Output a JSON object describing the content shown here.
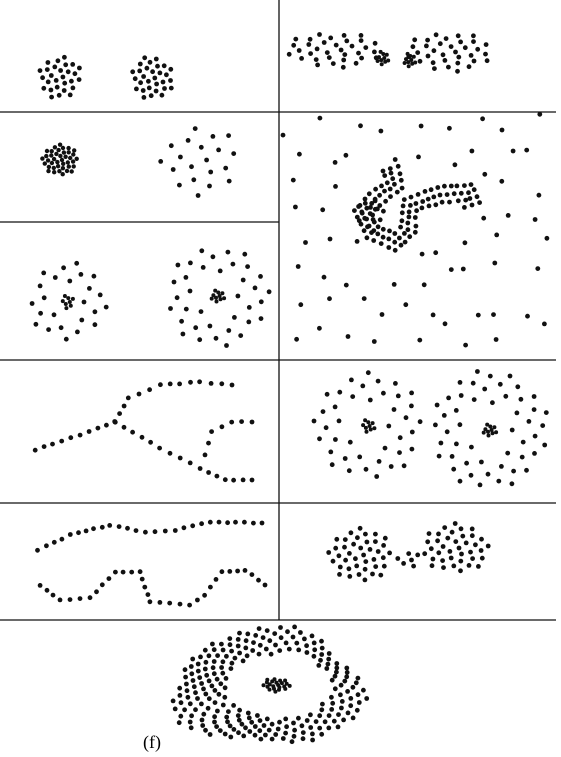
{
  "label": "(f)"
}
